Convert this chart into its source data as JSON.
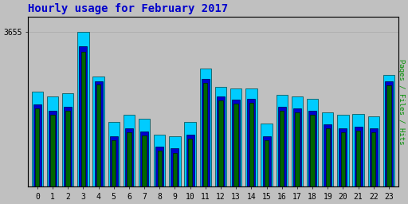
{
  "title": "Hourly usage for February 2017",
  "title_color": "#0000cc",
  "title_fontsize": 10,
  "ylabel_right": "Pages / Files / Hits",
  "ylabel_right_color": "#009000",
  "hours": [
    0,
    1,
    2,
    3,
    4,
    5,
    6,
    7,
    8,
    9,
    10,
    11,
    12,
    13,
    14,
    15,
    16,
    17,
    18,
    19,
    20,
    21,
    22,
    23
  ],
  "pages": [
    3595,
    3590,
    3593,
    3655,
    3610,
    3565,
    3572,
    3568,
    3552,
    3550,
    3565,
    3618,
    3600,
    3598,
    3598,
    3563,
    3592,
    3590,
    3588,
    3574,
    3572,
    3573,
    3570,
    3612
  ],
  "files": [
    3582,
    3576,
    3580,
    3640,
    3605,
    3550,
    3558,
    3555,
    3540,
    3538,
    3552,
    3608,
    3590,
    3587,
    3588,
    3550,
    3580,
    3578,
    3576,
    3562,
    3558,
    3560,
    3558,
    3605
  ],
  "hits": [
    3578,
    3572,
    3576,
    3635,
    3602,
    3546,
    3554,
    3551,
    3536,
    3534,
    3548,
    3604,
    3586,
    3583,
    3584,
    3546,
    3576,
    3574,
    3572,
    3558,
    3554,
    3556,
    3554,
    3601
  ],
  "pages_color": "#00ccff",
  "files_color": "#0000cc",
  "hits_color": "#006600",
  "background_color": "#c0c0c0",
  "plot_bg_color": "#c0c0c0",
  "ylim_min": 3500,
  "ylim_max": 3670,
  "ytick_label": "3655",
  "ytick_value": 3655
}
